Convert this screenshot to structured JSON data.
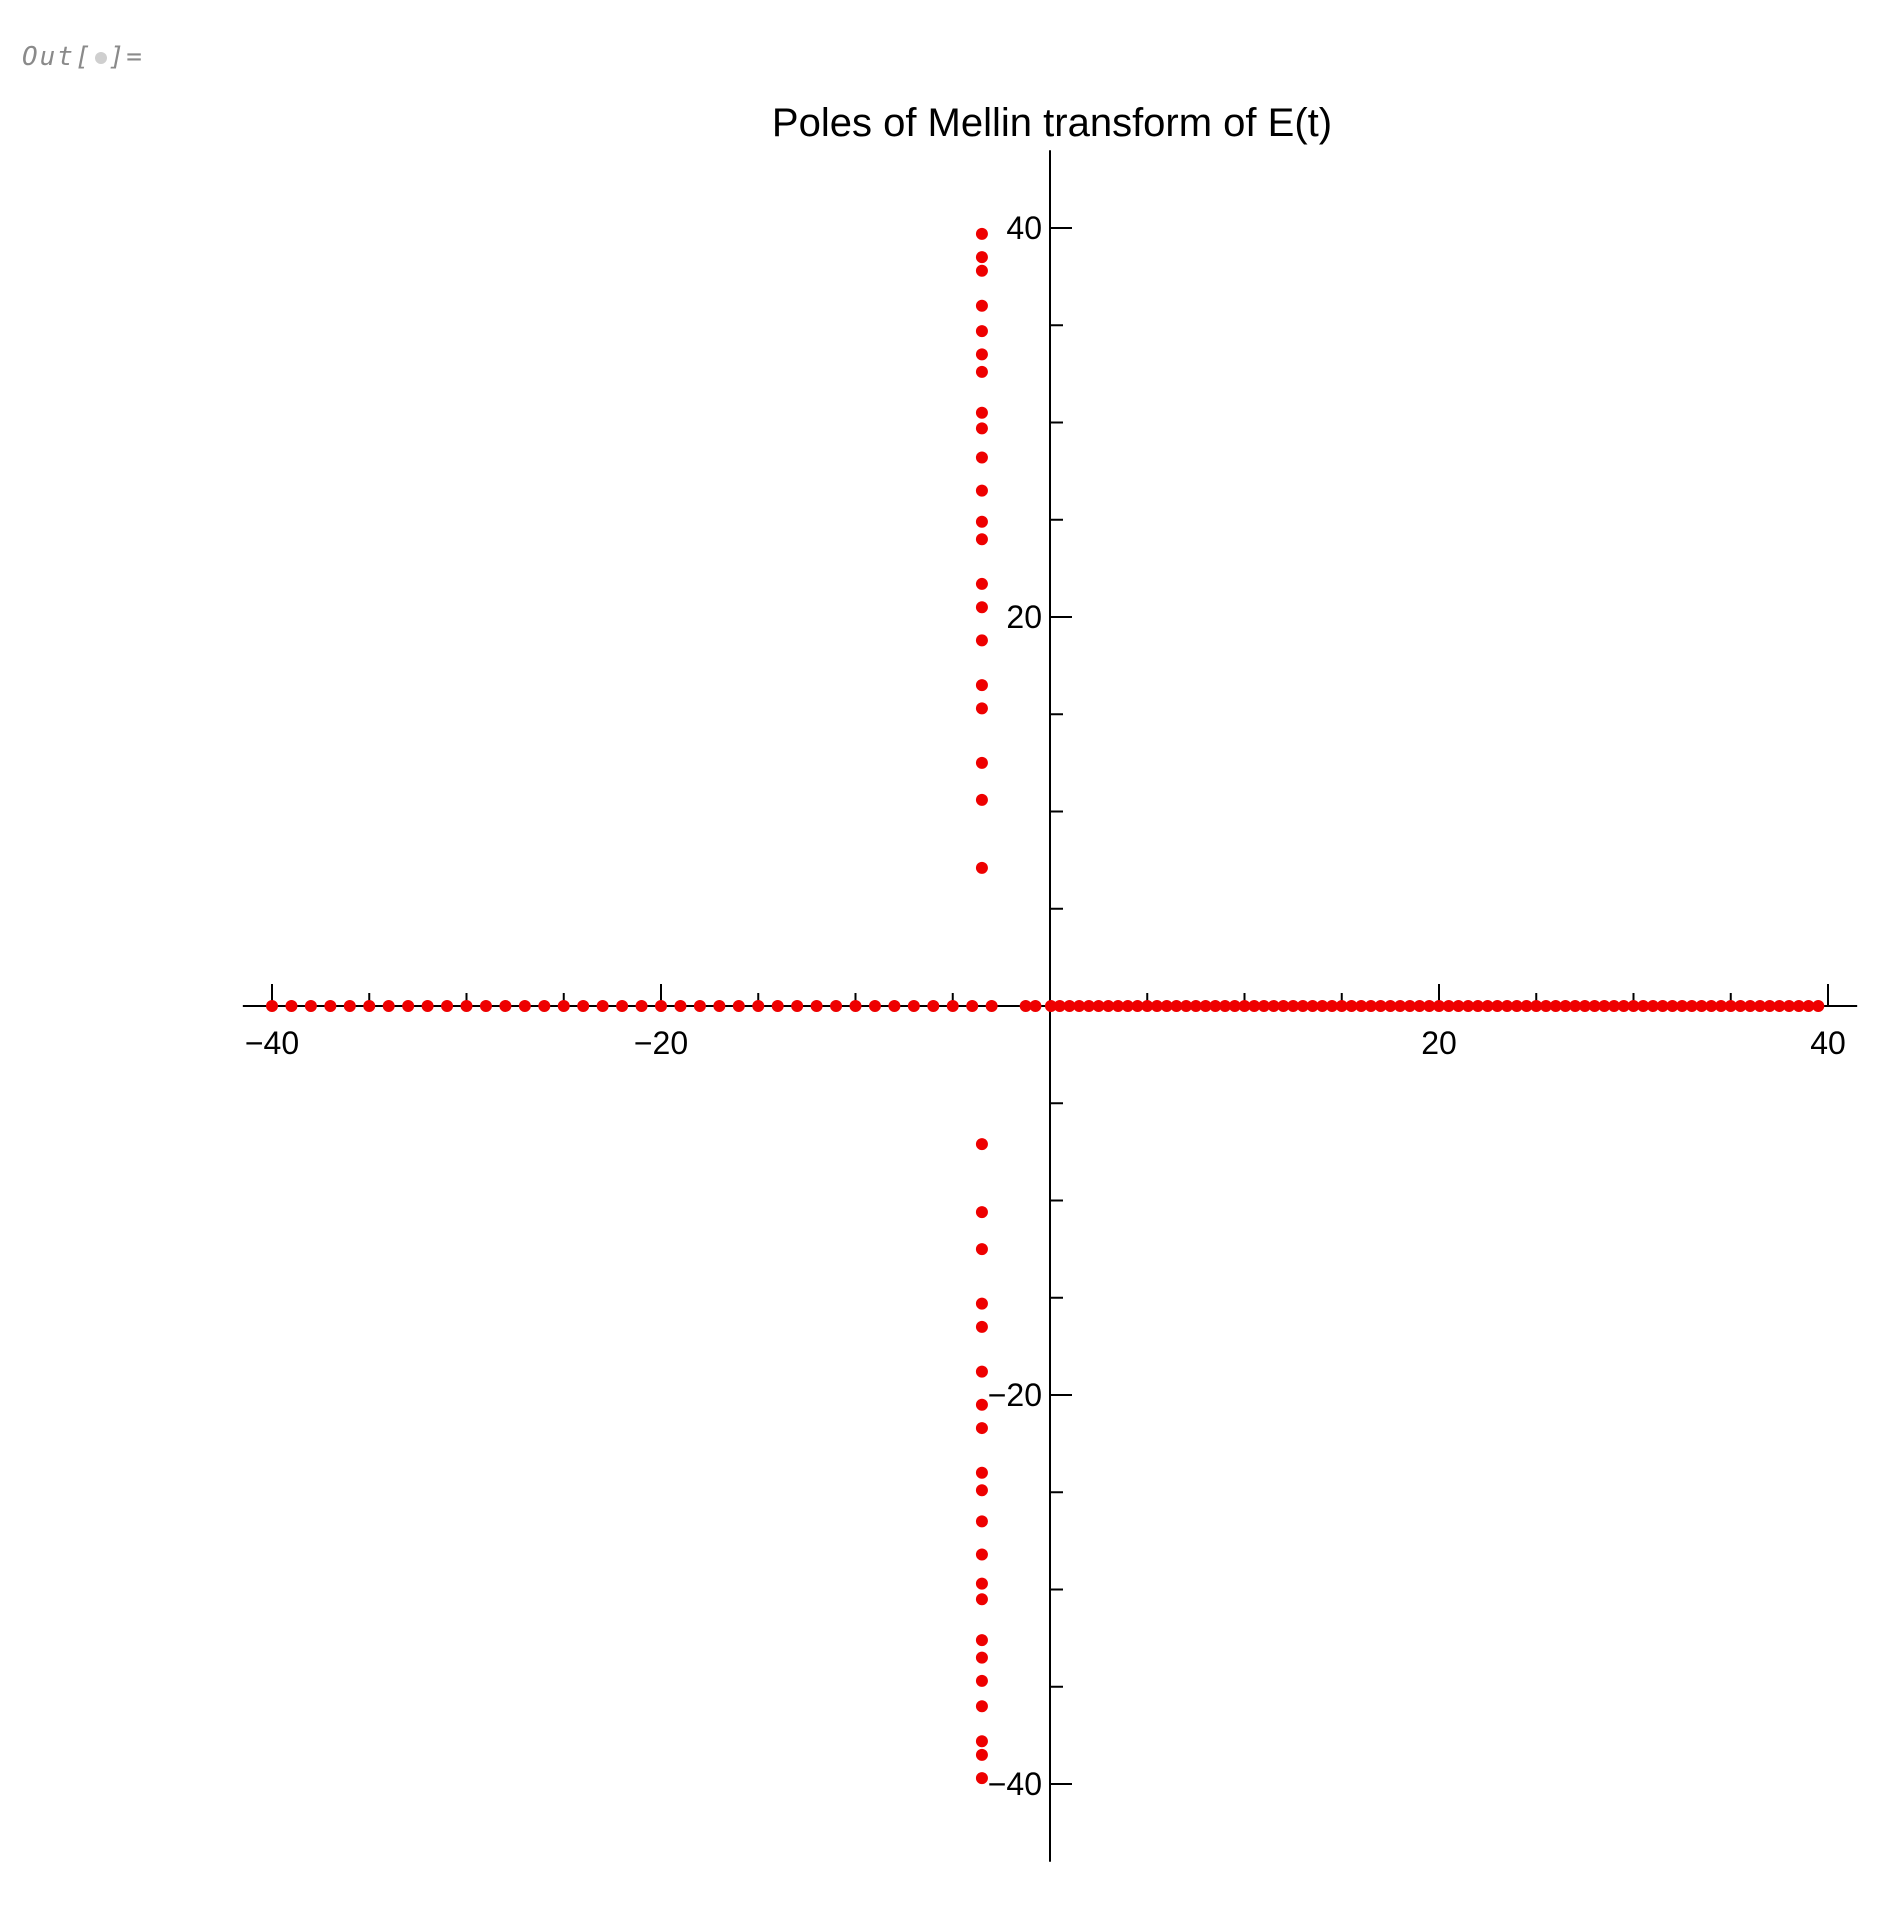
{
  "cell": {
    "prefix": "Out[",
    "suffix": "]="
  },
  "chart_data": {
    "type": "scatter",
    "title": "Poles of Mellin transform of E(t)",
    "xlabel": "",
    "ylabel": "",
    "xlim": [
      -41.5,
      41.5
    ],
    "ylim": [
      -44,
      44
    ],
    "x_ticks": [
      -40,
      -20,
      20,
      40
    ],
    "x_tick_labels": [
      "−40",
      "−20",
      "20",
      "40"
    ],
    "y_ticks": [
      -40,
      -20,
      20,
      40
    ],
    "y_tick_labels": [
      "−40",
      "−20",
      "20",
      "40"
    ],
    "grid": false,
    "marker_color": "#ee0000",
    "axis_color": "#000000",
    "series": [
      {
        "points": [
          {
            "x": -40,
            "y": 0
          },
          {
            "x": -39,
            "y": 0
          },
          {
            "x": -38,
            "y": 0
          },
          {
            "x": -37,
            "y": 0
          },
          {
            "x": -36,
            "y": 0
          },
          {
            "x": -35,
            "y": 0
          },
          {
            "x": -34,
            "y": 0
          },
          {
            "x": -33,
            "y": 0
          },
          {
            "x": -32,
            "y": 0
          },
          {
            "x": -31,
            "y": 0
          },
          {
            "x": -30,
            "y": 0
          },
          {
            "x": -29,
            "y": 0
          },
          {
            "x": -28,
            "y": 0
          },
          {
            "x": -27,
            "y": 0
          },
          {
            "x": -26,
            "y": 0
          },
          {
            "x": -25,
            "y": 0
          },
          {
            "x": -24,
            "y": 0
          },
          {
            "x": -23,
            "y": 0
          },
          {
            "x": -22,
            "y": 0
          },
          {
            "x": -21,
            "y": 0
          },
          {
            "x": -20,
            "y": 0
          },
          {
            "x": -19,
            "y": 0
          },
          {
            "x": -18,
            "y": 0
          },
          {
            "x": -17,
            "y": 0
          },
          {
            "x": -16,
            "y": 0
          },
          {
            "x": -15,
            "y": 0
          },
          {
            "x": -14,
            "y": 0
          },
          {
            "x": -13,
            "y": 0
          },
          {
            "x": -12,
            "y": 0
          },
          {
            "x": -11,
            "y": 0
          },
          {
            "x": -10,
            "y": 0
          },
          {
            "x": -9,
            "y": 0
          },
          {
            "x": -8,
            "y": 0
          },
          {
            "x": -7,
            "y": 0
          },
          {
            "x": -6,
            "y": 0
          },
          {
            "x": -5,
            "y": 0
          },
          {
            "x": -4,
            "y": 0
          },
          {
            "x": -3,
            "y": 0
          },
          {
            "x": -1.25,
            "y": 0
          },
          {
            "x": -0.75,
            "y": 0
          },
          {
            "x": 0.05,
            "y": 0
          },
          {
            "x": 0.5,
            "y": 0
          },
          {
            "x": 1,
            "y": 0
          },
          {
            "x": 1.5,
            "y": 0
          },
          {
            "x": 2,
            "y": 0
          },
          {
            "x": 2.5,
            "y": 0
          },
          {
            "x": 3,
            "y": 0
          },
          {
            "x": 3.5,
            "y": 0
          },
          {
            "x": 4,
            "y": 0
          },
          {
            "x": 4.5,
            "y": 0
          },
          {
            "x": 5,
            "y": 0
          },
          {
            "x": 5.5,
            "y": 0
          },
          {
            "x": 6,
            "y": 0
          },
          {
            "x": 6.5,
            "y": 0
          },
          {
            "x": 7,
            "y": 0
          },
          {
            "x": 7.5,
            "y": 0
          },
          {
            "x": 8,
            "y": 0
          },
          {
            "x": 8.5,
            "y": 0
          },
          {
            "x": 9,
            "y": 0
          },
          {
            "x": 9.5,
            "y": 0
          },
          {
            "x": 10,
            "y": 0
          },
          {
            "x": 10.5,
            "y": 0
          },
          {
            "x": 11,
            "y": 0
          },
          {
            "x": 11.5,
            "y": 0
          },
          {
            "x": 12,
            "y": 0
          },
          {
            "x": 12.5,
            "y": 0
          },
          {
            "x": 13,
            "y": 0
          },
          {
            "x": 13.5,
            "y": 0
          },
          {
            "x": 14,
            "y": 0
          },
          {
            "x": 14.5,
            "y": 0
          },
          {
            "x": 15,
            "y": 0
          },
          {
            "x": 15.5,
            "y": 0
          },
          {
            "x": 16,
            "y": 0
          },
          {
            "x": 16.5,
            "y": 0
          },
          {
            "x": 17,
            "y": 0
          },
          {
            "x": 17.5,
            "y": 0
          },
          {
            "x": 18,
            "y": 0
          },
          {
            "x": 18.5,
            "y": 0
          },
          {
            "x": 19,
            "y": 0
          },
          {
            "x": 19.5,
            "y": 0
          },
          {
            "x": 20,
            "y": 0
          },
          {
            "x": 20.5,
            "y": 0
          },
          {
            "x": 21,
            "y": 0
          },
          {
            "x": 21.5,
            "y": 0
          },
          {
            "x": 22,
            "y": 0
          },
          {
            "x": 22.5,
            "y": 0
          },
          {
            "x": 23,
            "y": 0
          },
          {
            "x": 23.5,
            "y": 0
          },
          {
            "x": 24,
            "y": 0
          },
          {
            "x": 24.5,
            "y": 0
          },
          {
            "x": 25,
            "y": 0
          },
          {
            "x": 25.5,
            "y": 0
          },
          {
            "x": 26,
            "y": 0
          },
          {
            "x": 26.5,
            "y": 0
          },
          {
            "x": 27,
            "y": 0
          },
          {
            "x": 27.5,
            "y": 0
          },
          {
            "x": 28,
            "y": 0
          },
          {
            "x": 28.5,
            "y": 0
          },
          {
            "x": 29,
            "y": 0
          },
          {
            "x": 29.5,
            "y": 0
          },
          {
            "x": 30,
            "y": 0
          },
          {
            "x": 30.5,
            "y": 0
          },
          {
            "x": 31,
            "y": 0
          },
          {
            "x": 31.5,
            "y": 0
          },
          {
            "x": 32,
            "y": 0
          },
          {
            "x": 32.5,
            "y": 0
          },
          {
            "x": 33,
            "y": 0
          },
          {
            "x": 33.5,
            "y": 0
          },
          {
            "x": 34,
            "y": 0
          },
          {
            "x": 34.5,
            "y": 0
          },
          {
            "x": 35,
            "y": 0
          },
          {
            "x": 35.5,
            "y": 0
          },
          {
            "x": 36,
            "y": 0
          },
          {
            "x": 36.5,
            "y": 0
          },
          {
            "x": 37,
            "y": 0
          },
          {
            "x": 37.5,
            "y": 0
          },
          {
            "x": 38,
            "y": 0
          },
          {
            "x": 38.5,
            "y": 0
          },
          {
            "x": 39,
            "y": 0
          },
          {
            "x": 39.5,
            "y": 0
          },
          {
            "x": -3.5,
            "y": 39.7
          },
          {
            "x": -3.5,
            "y": 38.5
          },
          {
            "x": -3.5,
            "y": 37.8
          },
          {
            "x": -3.5,
            "y": 36.0
          },
          {
            "x": -3.5,
            "y": 34.7
          },
          {
            "x": -3.5,
            "y": 33.5
          },
          {
            "x": -3.5,
            "y": 32.6
          },
          {
            "x": -3.5,
            "y": 30.5
          },
          {
            "x": -3.5,
            "y": 29.7
          },
          {
            "x": -3.5,
            "y": 28.2
          },
          {
            "x": -3.5,
            "y": 26.5
          },
          {
            "x": -3.5,
            "y": 24.9
          },
          {
            "x": -3.5,
            "y": 24.0
          },
          {
            "x": -3.5,
            "y": 21.7
          },
          {
            "x": -3.5,
            "y": 20.5
          },
          {
            "x": -3.5,
            "y": 18.8
          },
          {
            "x": -3.5,
            "y": 16.5
          },
          {
            "x": -3.5,
            "y": 15.3
          },
          {
            "x": -3.5,
            "y": 12.5
          },
          {
            "x": -3.5,
            "y": 10.6
          },
          {
            "x": -3.5,
            "y": 7.1
          },
          {
            "x": -3.5,
            "y": -7.1
          },
          {
            "x": -3.5,
            "y": -10.6
          },
          {
            "x": -3.5,
            "y": -12.5
          },
          {
            "x": -3.5,
            "y": -15.3
          },
          {
            "x": -3.5,
            "y": -16.5
          },
          {
            "x": -3.5,
            "y": -18.8
          },
          {
            "x": -3.5,
            "y": -20.5
          },
          {
            "x": -3.5,
            "y": -21.7
          },
          {
            "x": -3.5,
            "y": -24.0
          },
          {
            "x": -3.5,
            "y": -24.9
          },
          {
            "x": -3.5,
            "y": -26.5
          },
          {
            "x": -3.5,
            "y": -28.2
          },
          {
            "x": -3.5,
            "y": -29.7
          },
          {
            "x": -3.5,
            "y": -30.5
          },
          {
            "x": -3.5,
            "y": -32.6
          },
          {
            "x": -3.5,
            "y": -33.5
          },
          {
            "x": -3.5,
            "y": -34.7
          },
          {
            "x": -3.5,
            "y": -36.0
          },
          {
            "x": -3.5,
            "y": -37.8
          },
          {
            "x": -3.5,
            "y": -38.5
          },
          {
            "x": -3.5,
            "y": -39.7
          }
        ]
      }
    ]
  }
}
